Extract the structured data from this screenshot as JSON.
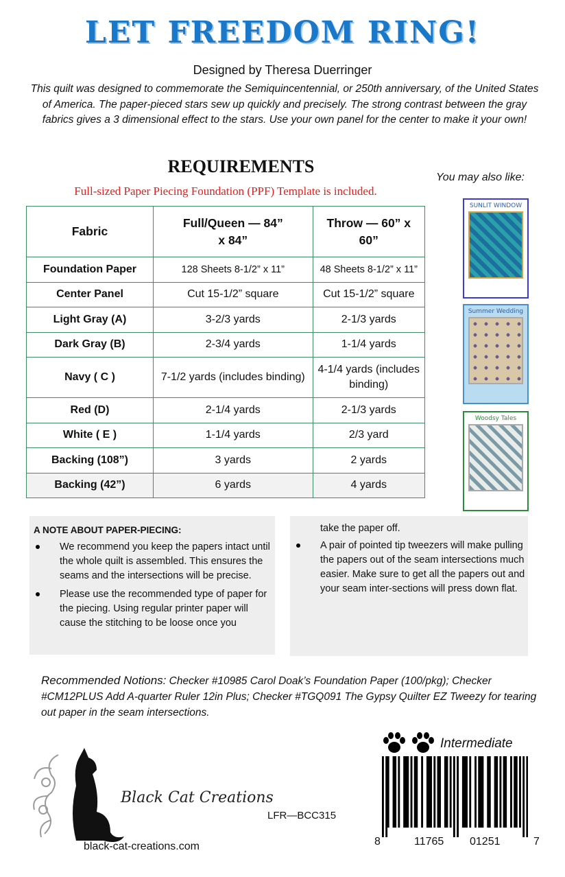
{
  "header": {
    "title": "LET FREEDOM RING!",
    "designer": "Designed by Theresa Duerringer",
    "intro": "This quilt was designed to commemorate the Semiquincentennial, or 250th anniversary, of the  United States of America.  The paper-pieced stars sew up quickly and precisely.  The strong contrast between the gray fabrics gives a 3 dimensional effect to the stars.  Use your own panel for the center to make it your own!"
  },
  "requirements": {
    "heading": "REQUIREMENTS",
    "note": "Full-sized Paper Piecing Foundation (PPF) Template is included.",
    "columns": [
      "Fabric",
      "Full/Queen — 84” x 84”",
      "Throw — 60” x 60”"
    ],
    "rows": [
      [
        "Foundation Paper",
        "128 Sheets 8-1/2” x 11”",
        "48 Sheets 8-1/2” x 11”"
      ],
      [
        "Center Panel",
        "Cut 15-1/2” square",
        "Cut 15-1/2” square"
      ],
      [
        "Light Gray (A)",
        "3-2/3 yards",
        "2-1/3 yards"
      ],
      [
        "Dark Gray (B)",
        "2-3/4 yards",
        "1-1/4 yards"
      ],
      [
        "Navy ( C )",
        "7-1/2 yards (includes binding)",
        "4-1/4 yards (includes binding)"
      ],
      [
        "Red (D)",
        "2-1/4 yards",
        "2-1/3 yards"
      ],
      [
        "White ( E )",
        "1-1/4 yards",
        "2/3 yard"
      ],
      [
        "Backing (108”)",
        "3 yards",
        "2 yards"
      ],
      [
        "Backing (42”)",
        "6 yards",
        "4 yards"
      ]
    ]
  },
  "also_like": {
    "label": "You may also like:",
    "items": [
      {
        "title": "SUNLIT WINDOW",
        "border": "#3b3bd0",
        "bg": "#1d6fa0"
      },
      {
        "title": "Summer Wedding",
        "border": "#4a8fc8",
        "bg": "#b9dcf0"
      },
      {
        "title": "Woodsy Tales",
        "border": "#2e8b3c",
        "bg": "#d6ddd8"
      }
    ]
  },
  "note": {
    "heading": "A NOTE ABOUT PAPER-PIECING:",
    "left": [
      "We recommend you keep the papers intact until the whole quilt is assembled.  This ensures the seams and the intersections will be precise.",
      "Please use the recommended type of paper for the piecing. Using regular printer paper will cause the stitching to be loose once you"
    ],
    "right_continued": "take the paper off.",
    "right": [
      "A pair of pointed tip tweezers will make pulling the papers out of the seam intersections much easier.  Make sure to get all the papers out and your seam inter-sections will press down flat."
    ]
  },
  "notions": {
    "label": "Recommended Notions:",
    "text": "  Checker #10985 Carol Doak’s Foundation Paper (100/pkg); Checker #CM12PLUS Add A-quarter Ruler 12in Plus; Checker #TGQ091 The Gypsy Quilter EZ Tweezy for tearing out paper in the seam intersections."
  },
  "footer": {
    "brand": "Black Cat Creations",
    "website": "black-cat-creations.com",
    "sku": "LFR—BCC315",
    "skill_level": "Intermediate",
    "paw_count": 2,
    "barcode": {
      "first": "8",
      "left": "11765",
      "right": "01251",
      "check": "7"
    }
  }
}
